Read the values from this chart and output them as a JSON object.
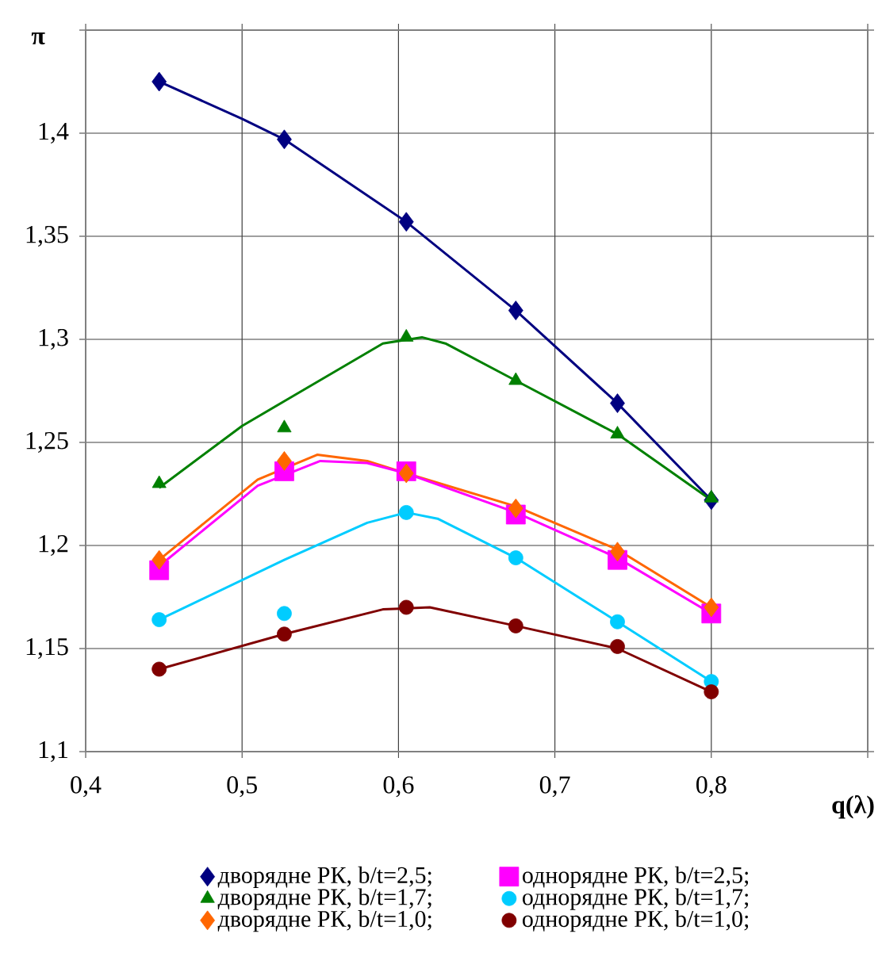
{
  "chart_data": {
    "type": "scatter",
    "xlabel": "q(λ)",
    "ylabel": "π",
    "xlim": [
      0.4,
      0.9
    ],
    "xticks": [
      {
        "value": 0.4,
        "label": "0,4"
      },
      {
        "value": 0.5,
        "label": "0,5"
      },
      {
        "value": 0.6,
        "label": "0,6"
      },
      {
        "value": 0.7,
        "label": "0,7"
      },
      {
        "value": 0.8,
        "label": "0,8"
      },
      {
        "value": 0.9,
        "label": null
      }
    ],
    "ylim": [
      1.1,
      1.45
    ],
    "yticks": [
      {
        "value": 1.1,
        "label": "1,1"
      },
      {
        "value": 1.15,
        "label": "1,15"
      },
      {
        "value": 1.2,
        "label": "1,2"
      },
      {
        "value": 1.25,
        "label": "1,25"
      },
      {
        "value": 1.3,
        "label": "1,3"
      },
      {
        "value": 1.35,
        "label": "1,35"
      },
      {
        "value": 1.4,
        "label": "1,4"
      },
      {
        "value": 1.45,
        "label": null
      }
    ],
    "grid": true,
    "legend": "bottom",
    "series": [
      {
        "name": "дворядне РК, b/t=2,5;",
        "color": "#000080",
        "marker": "diamond",
        "x": [
          0.447,
          0.527,
          0.605,
          0.675,
          0.74,
          0.8
        ],
        "values": [
          1.425,
          1.397,
          1.357,
          1.314,
          1.269,
          1.222
        ]
      },
      {
        "name": "дворядне РК, b/t=1,7;",
        "color": "#008000",
        "marker": "triangle",
        "x": [
          0.447,
          0.527,
          0.605,
          0.675,
          0.74,
          0.8
        ],
        "values": [
          1.23,
          1.257,
          1.301,
          1.28,
          1.254,
          1.223
        ]
      },
      {
        "name": "дворядне РК, b/t=1,0;",
        "color": "#ff6600",
        "marker": "diamond",
        "x": [
          0.447,
          0.527,
          0.605,
          0.675,
          0.74,
          0.8
        ],
        "values": [
          1.193,
          1.241,
          1.235,
          1.218,
          1.197,
          1.17
        ]
      },
      {
        "name": "однорядне РК, b/t=2,5;",
        "color": "#ff00ff",
        "marker": "square",
        "x": [
          0.447,
          0.527,
          0.605,
          0.675,
          0.74,
          0.8
        ],
        "values": [
          1.188,
          1.236,
          1.236,
          1.215,
          1.193,
          1.167
        ]
      },
      {
        "name": "однорядне РК, b/t=1,7;",
        "color": "#00ccff",
        "marker": "circle",
        "x": [
          0.447,
          0.527,
          0.605,
          0.675,
          0.74,
          0.8
        ],
        "values": [
          1.164,
          1.167,
          1.216,
          1.194,
          1.163,
          1.134
        ]
      },
      {
        "name": "однорядне РК, b/t=1,0;",
        "color": "#800000",
        "marker": "circle",
        "x": [
          0.447,
          0.527,
          0.605,
          0.675,
          0.74,
          0.8
        ],
        "values": [
          1.14,
          1.157,
          1.17,
          1.161,
          1.151,
          1.129
        ]
      },
      {
        "type": "line",
        "color": "#000080",
        "x": [
          0.447,
          0.5,
          0.527,
          0.605,
          0.675,
          0.74,
          0.8
        ],
        "values": [
          1.425,
          1.407,
          1.397,
          1.357,
          1.314,
          1.269,
          1.222
        ]
      },
      {
        "type": "line",
        "color": "#008000",
        "x": [
          0.447,
          0.5,
          0.527,
          0.59,
          0.615,
          0.63,
          0.675,
          0.74,
          0.8
        ],
        "values": [
          1.228,
          1.258,
          1.27,
          1.298,
          1.301,
          1.298,
          1.28,
          1.254,
          1.222
        ]
      },
      {
        "type": "line",
        "color": "#ff6600",
        "x": [
          0.447,
          0.51,
          0.548,
          0.58,
          0.605,
          0.675,
          0.74,
          0.8
        ],
        "values": [
          1.193,
          1.232,
          1.244,
          1.241,
          1.235,
          1.219,
          1.198,
          1.17
        ]
      },
      {
        "type": "line",
        "color": "#ff00ff",
        "x": [
          0.447,
          0.51,
          0.55,
          0.58,
          0.605,
          0.675,
          0.74,
          0.8
        ],
        "values": [
          1.19,
          1.229,
          1.241,
          1.24,
          1.235,
          1.216,
          1.194,
          1.167
        ]
      },
      {
        "type": "line",
        "color": "#00ccff",
        "x": [
          0.447,
          0.527,
          0.58,
          0.605,
          0.625,
          0.675,
          0.74,
          0.8
        ],
        "values": [
          1.164,
          1.193,
          1.211,
          1.216,
          1.213,
          1.194,
          1.163,
          1.134
        ]
      },
      {
        "type": "line",
        "color": "#800000",
        "x": [
          0.447,
          0.527,
          0.59,
          0.62,
          0.675,
          0.74,
          0.8
        ],
        "values": [
          1.14,
          1.157,
          1.169,
          1.17,
          1.161,
          1.15,
          1.129
        ]
      }
    ]
  }
}
